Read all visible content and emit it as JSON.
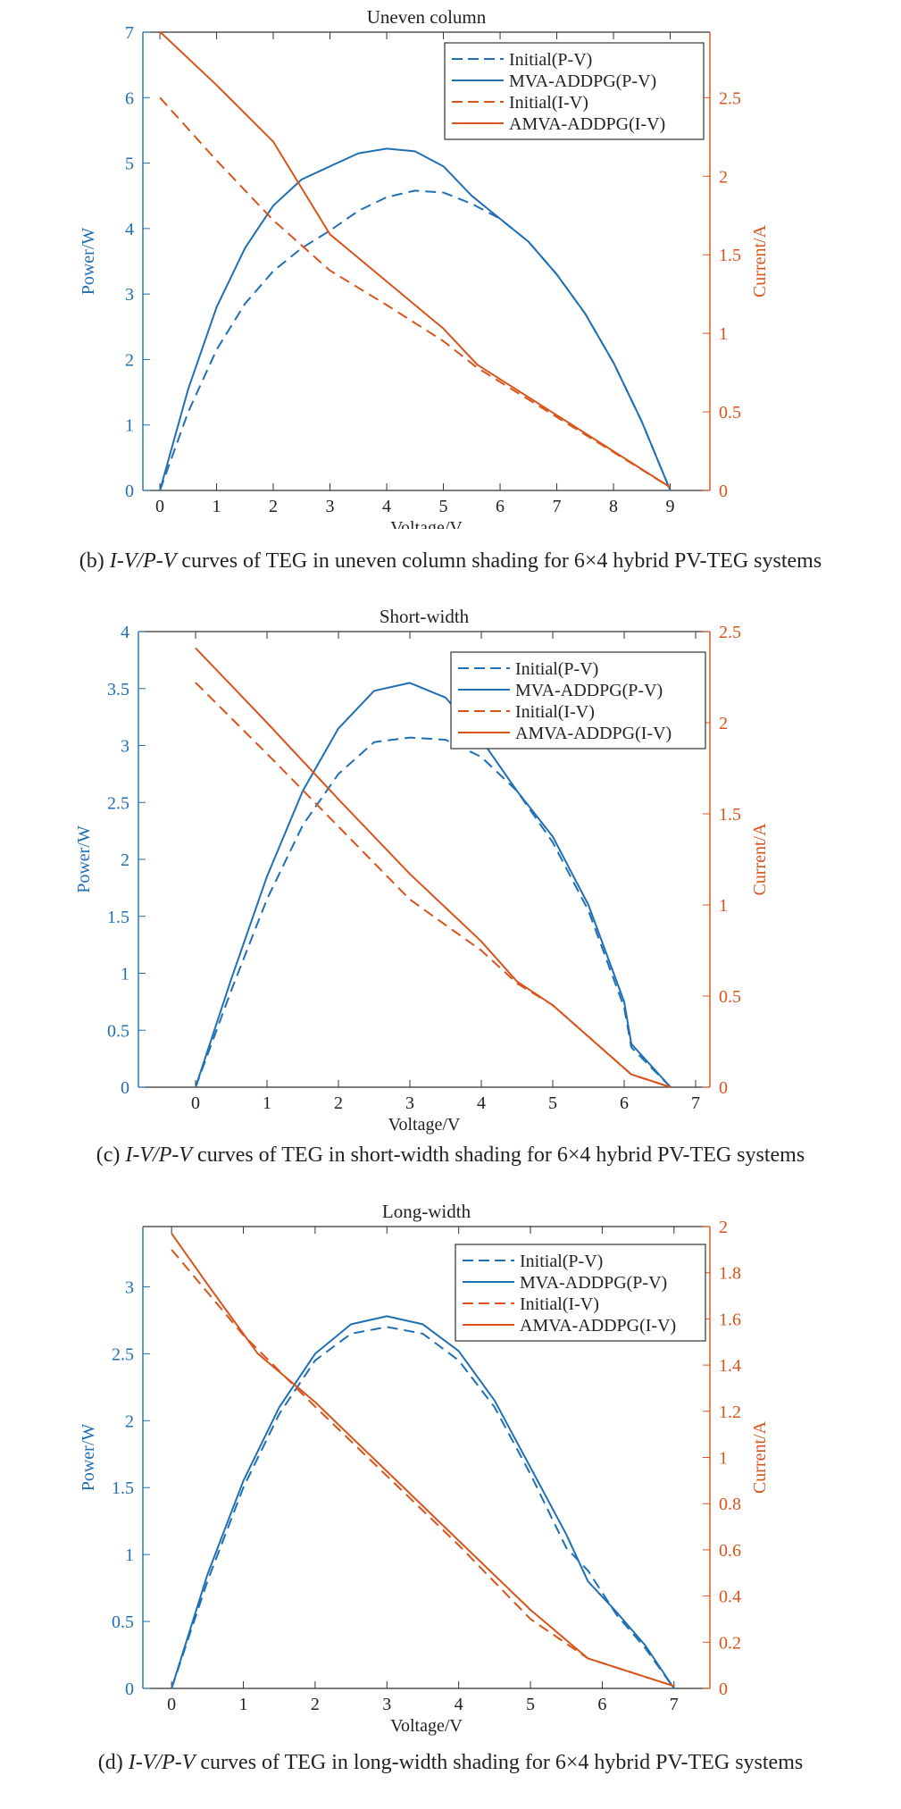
{
  "colors": {
    "blue": "#1f6fb4",
    "orange": "#d9541a"
  },
  "captions": [
    {
      "label": "(b)",
      "curves": "I-V/P-V",
      "text": "curves of TEG in uneven column shading for 6×4 hybrid PV-TEG systems"
    },
    {
      "label": "(c)",
      "curves": "I-V/P-V",
      "text": "curves of TEG in short-width shading for 6×4 hybrid PV-TEG systems"
    },
    {
      "label": "(d)",
      "curves": "I-V/P-V",
      "text": "curves of TEG in long-width shading for 6×4 hybrid PV-TEG systems"
    }
  ],
  "chart_data": [
    {
      "type": "line",
      "title": "Uneven column",
      "xlabel": "Voltage/V",
      "ylabel": "Power/W",
      "y2label": "Current/A",
      "xlim": [
        -0.3,
        9.7
      ],
      "ylim": [
        0,
        7
      ],
      "y2lim": [
        0,
        2.917
      ],
      "xticks": [
        0,
        1,
        2,
        3,
        4,
        5,
        6,
        7,
        8,
        9
      ],
      "yticks": [
        0,
        1,
        2,
        3,
        4,
        5,
        6,
        7
      ],
      "y2ticks": [
        0,
        0.5,
        1,
        1.5,
        2,
        2.5
      ],
      "xtick_labels": [
        "0",
        "1",
        "2",
        "3",
        "4",
        "5",
        "6",
        "7",
        "8",
        "9"
      ],
      "ytick_labels": [
        "0",
        "1",
        "2",
        "3",
        "4",
        "5",
        "6",
        "7"
      ],
      "y2tick_labels": [
        "0",
        "0.5",
        "1",
        "1.5",
        "2",
        "2.5"
      ],
      "legend_position": "top-right",
      "series": [
        {
          "name": "Initial(P-V)",
          "axis": "left",
          "color": "#1f6fb4",
          "dash": true,
          "x": [
            0,
            0.5,
            1,
            1.5,
            2,
            2.5,
            3,
            3.5,
            4,
            4.5,
            5,
            5.5,
            6,
            6.5,
            7,
            7.5,
            8,
            8.5,
            9
          ],
          "y": [
            0,
            1.2,
            2.15,
            2.85,
            3.35,
            3.7,
            3.97,
            4.27,
            4.48,
            4.58,
            4.55,
            4.38,
            4.15,
            3.8,
            3.3,
            2.7,
            1.95,
            1.05,
            0
          ]
        },
        {
          "name": "MVA-ADDPG(P-V)",
          "axis": "left",
          "color": "#1f6fb4",
          "dash": false,
          "x": [
            0,
            0.5,
            1,
            1.5,
            2,
            2.5,
            3,
            3.5,
            4,
            4.5,
            5,
            5.5,
            6,
            6.5,
            7,
            7.5,
            8,
            8.5,
            9
          ],
          "y": [
            0,
            1.55,
            2.8,
            3.7,
            4.35,
            4.75,
            4.95,
            5.15,
            5.22,
            5.18,
            4.95,
            4.5,
            4.15,
            3.8,
            3.3,
            2.7,
            1.95,
            1.05,
            0
          ]
        },
        {
          "name": "Initial(I-V)",
          "axis": "right",
          "color": "#d9541a",
          "dash": true,
          "x": [
            0,
            1,
            2,
            3,
            4,
            5,
            5.6,
            9
          ],
          "y": [
            2.5,
            2.1,
            1.72,
            1.4,
            1.18,
            0.95,
            0.78,
            0.02
          ]
        },
        {
          "name": "AMVA-ADDPG(I-V)",
          "axis": "right",
          "color": "#d9541a",
          "dash": false,
          "x": [
            0,
            1,
            2,
            3,
            4,
            5,
            5.6,
            9
          ],
          "y": [
            2.92,
            2.58,
            2.22,
            1.63,
            1.33,
            1.03,
            0.8,
            0.02
          ]
        }
      ]
    },
    {
      "type": "line",
      "title": "Short-width",
      "xlabel": "Voltage/V",
      "ylabel": "Power/W",
      "y2label": "Current/A",
      "xlim": [
        -0.8,
        7.2
      ],
      "ylim": [
        0,
        4
      ],
      "y2lim": [
        0,
        2.5
      ],
      "xticks": [
        0,
        1,
        2,
        3,
        4,
        5,
        6,
        7
      ],
      "yticks": [
        0,
        0.5,
        1,
        1.5,
        2,
        2.5,
        3,
        3.5,
        4
      ],
      "y2ticks": [
        0,
        0.5,
        1,
        1.5,
        2,
        2.5
      ],
      "xtick_labels": [
        "0",
        "1",
        "2",
        "3",
        "4",
        "5",
        "6",
        "7"
      ],
      "ytick_labels": [
        "0",
        "0.5",
        "1",
        "1.5",
        "2",
        "2.5",
        "3",
        "3.5",
        "4"
      ],
      "y2tick_labels": [
        "0",
        "0.5",
        "1",
        "1.5",
        "2",
        "2.5"
      ],
      "legend_position": "top-right",
      "series": [
        {
          "name": "Initial(P-V)",
          "axis": "left",
          "color": "#1f6fb4",
          "dash": true,
          "x": [
            0,
            0.5,
            1,
            1.5,
            2,
            2.5,
            3,
            3.5,
            4,
            4.5,
            5,
            5.5,
            6,
            6.1,
            6.65
          ],
          "y": [
            0,
            0.85,
            1.65,
            2.3,
            2.75,
            3.03,
            3.07,
            3.05,
            2.9,
            2.6,
            2.15,
            1.55,
            0.7,
            0.35,
            0
          ]
        },
        {
          "name": "MVA-ADDPG(P-V)",
          "axis": "left",
          "color": "#1f6fb4",
          "dash": false,
          "x": [
            0,
            0.5,
            1,
            1.5,
            2,
            2.5,
            3,
            3.5,
            4,
            4.5,
            5,
            5.5,
            6,
            6.1,
            6.65
          ],
          "y": [
            0,
            0.95,
            1.85,
            2.6,
            3.15,
            3.48,
            3.55,
            3.42,
            3.05,
            2.6,
            2.2,
            1.6,
            0.75,
            0.38,
            0
          ]
        },
        {
          "name": "Initial(I-V)",
          "axis": "right",
          "color": "#d9541a",
          "dash": true,
          "x": [
            0,
            1,
            2,
            3,
            4,
            4.5,
            5,
            6.1,
            6.65
          ],
          "y": [
            2.22,
            1.83,
            1.43,
            1.03,
            0.75,
            0.57,
            0.45,
            0.07,
            0
          ]
        },
        {
          "name": "AMVA-ADDPG(I-V)",
          "axis": "right",
          "color": "#d9541a",
          "dash": false,
          "x": [
            0,
            1,
            2,
            3,
            4,
            4.5,
            5,
            6.1,
            6.65
          ],
          "y": [
            2.41,
            2.0,
            1.58,
            1.17,
            0.8,
            0.58,
            0.45,
            0.07,
            0
          ]
        }
      ]
    },
    {
      "type": "line",
      "title": "Long-width",
      "xlabel": "Voltage/V",
      "ylabel": "Power/W",
      "y2label": "Current/A",
      "xlim": [
        -0.4,
        7.5
      ],
      "ylim": [
        0,
        3.45
      ],
      "y2lim": [
        0,
        2
      ],
      "xticks": [
        0,
        1,
        2,
        3,
        4,
        5,
        6,
        7
      ],
      "yticks": [
        0,
        0.5,
        1,
        1.5,
        2,
        2.5,
        3
      ],
      "y2ticks": [
        0,
        0.2,
        0.4,
        0.6,
        0.8,
        1,
        1.2,
        1.4,
        1.6,
        1.8,
        2
      ],
      "xtick_labels": [
        "0",
        "1",
        "2",
        "3",
        "4",
        "5",
        "6",
        "7"
      ],
      "ytick_labels": [
        "0",
        "0.5",
        "1",
        "1.5",
        "2",
        "2.5",
        "3"
      ],
      "y2tick_labels": [
        "0",
        "0.2",
        "0.4",
        "0.6",
        "0.8",
        "1",
        "1.2",
        "1.4",
        "1.6",
        "1.8",
        "2"
      ],
      "legend_position": "top-right",
      "series": [
        {
          "name": "Initial(P-V)",
          "axis": "left",
          "color": "#1f6fb4",
          "dash": true,
          "x": [
            0,
            0.5,
            1,
            1.5,
            2,
            2.5,
            3,
            3.5,
            4,
            4.5,
            5,
            5.5,
            5.8,
            6.2,
            6.6,
            7
          ],
          "y": [
            0,
            0.8,
            1.5,
            2.05,
            2.45,
            2.65,
            2.7,
            2.65,
            2.45,
            2.1,
            1.6,
            1.05,
            0.88,
            0.55,
            0.3,
            0
          ]
        },
        {
          "name": "MVA-ADDPG(P-V)",
          "axis": "left",
          "color": "#1f6fb4",
          "dash": false,
          "x": [
            0,
            0.5,
            1,
            1.5,
            2,
            2.5,
            3,
            3.5,
            4,
            4.5,
            5,
            5.5,
            5.8,
            6.2,
            6.6,
            7
          ],
          "y": [
            0,
            0.85,
            1.55,
            2.1,
            2.5,
            2.72,
            2.78,
            2.72,
            2.52,
            2.15,
            1.65,
            1.15,
            0.8,
            0.57,
            0.32,
            0
          ]
        },
        {
          "name": "Initial(I-V)",
          "axis": "right",
          "color": "#d9541a",
          "dash": true,
          "x": [
            0,
            1,
            2,
            3,
            4,
            5,
            5.8,
            7
          ],
          "y": [
            1.9,
            1.53,
            1.22,
            0.92,
            0.62,
            0.3,
            0.13,
            0.01
          ]
        },
        {
          "name": "AMVA-ADDPG(I-V)",
          "axis": "right",
          "color": "#d9541a",
          "dash": false,
          "x": [
            0,
            0.5,
            1.2,
            2,
            3,
            4,
            5,
            5.8,
            7
          ],
          "y": [
            1.97,
            1.75,
            1.45,
            1.24,
            0.94,
            0.64,
            0.34,
            0.13,
            0.01
          ]
        }
      ]
    }
  ]
}
